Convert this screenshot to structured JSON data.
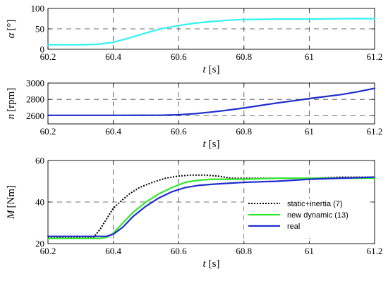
{
  "chart_data": [
    {
      "type": "line",
      "ylabel_sym": "α",
      "ylabel_unit": "[°]",
      "xlabel_sym": "t",
      "xlabel_unit": "[s]",
      "xlim": [
        60.2,
        61.2
      ],
      "ylim": [
        0,
        100
      ],
      "xticks": [
        "60.2",
        "60.4",
        "60.6",
        "60.8",
        "61",
        "61.2"
      ],
      "yticks": [
        "0",
        "50",
        "100"
      ],
      "grid": true,
      "series": [
        {
          "color": "#33f2f2",
          "x": [
            60.2,
            60.3,
            60.35,
            60.4,
            60.45,
            60.5,
            60.55,
            60.6,
            60.65,
            60.7,
            60.75,
            60.8,
            60.9,
            61.0,
            61.1,
            61.2
          ],
          "y": [
            11,
            11,
            12,
            17,
            28,
            40,
            51,
            58,
            64,
            68,
            71,
            73,
            74,
            74,
            75,
            75
          ]
        }
      ]
    },
    {
      "type": "line",
      "ylabel_sym": "n",
      "ylabel_unit": "[rpm]",
      "xlabel_sym": "t",
      "xlabel_unit": "[s]",
      "xlim": [
        60.2,
        61.2
      ],
      "ylim": [
        2500,
        3000
      ],
      "xticks": [
        "60.2",
        "60.4",
        "60.6",
        "60.8",
        "61",
        "61.2"
      ],
      "yticks": [
        "2600",
        "2800",
        "3000"
      ],
      "grid": true,
      "series": [
        {
          "color": "#1f2ecc",
          "x": [
            60.2,
            60.4,
            60.55,
            60.6,
            60.65,
            60.7,
            60.75,
            60.8,
            60.85,
            60.9,
            60.95,
            61.0,
            61.05,
            61.1,
            61.15,
            61.2
          ],
          "y": [
            2605,
            2605,
            2607,
            2612,
            2625,
            2645,
            2668,
            2695,
            2725,
            2755,
            2782,
            2810,
            2835,
            2860,
            2895,
            2935
          ]
        }
      ]
    },
    {
      "type": "line",
      "ylabel_sym": "M",
      "ylabel_unit": "[Nm]",
      "xlabel_sym": "t",
      "xlabel_unit": "[s]",
      "xlim": [
        60.2,
        61.2
      ],
      "ylim": [
        20,
        60
      ],
      "xticks": [
        "60.2",
        "60.4",
        "60.6",
        "60.8",
        "61",
        "61.2"
      ],
      "yticks": [
        "20",
        "40",
        "60"
      ],
      "grid": true,
      "legend_position": "bottom-right",
      "series": [
        {
          "name": "static+inertia (7)",
          "color": "#000000",
          "dash": "2 2",
          "x": [
            60.2,
            60.3,
            60.34,
            60.36,
            60.38,
            60.4,
            60.42,
            60.45,
            60.48,
            60.52,
            60.56,
            60.6,
            60.64,
            60.68,
            60.72,
            60.76,
            60.8,
            60.9,
            61.0,
            61.1,
            61.2
          ],
          "y": [
            23,
            23,
            23,
            27,
            32,
            37,
            40,
            44,
            47,
            49.5,
            51.5,
            52.5,
            53,
            53,
            52.5,
            51.5,
            51.5,
            51.5,
            51.5,
            52,
            52
          ]
        },
        {
          "name": "new dynamic (13)",
          "color": "#33e62e",
          "dash": "",
          "x": [
            60.2,
            60.36,
            60.38,
            60.4,
            60.43,
            60.46,
            60.5,
            60.54,
            60.58,
            60.62,
            60.66,
            60.7,
            60.75,
            60.8,
            60.9,
            61.0,
            61.1,
            61.2
          ],
          "y": [
            22.5,
            22.5,
            23,
            25,
            30,
            35,
            40,
            44,
            47,
            49.5,
            50.5,
            51,
            51,
            51,
            51.5,
            51.5,
            51.5,
            51.5
          ]
        },
        {
          "name": "real",
          "color": "#1f2ecc",
          "dash": "",
          "x": [
            60.2,
            60.36,
            60.38,
            60.4,
            60.43,
            60.46,
            60.5,
            60.54,
            60.58,
            60.62,
            60.66,
            60.7,
            60.75,
            60.8,
            60.9,
            61.0,
            61.1,
            61.2
          ],
          "y": [
            23.5,
            23.5,
            23.5,
            24.5,
            28,
            33,
            38,
            42,
            45,
            47,
            48,
            48.5,
            49,
            49.5,
            50,
            51,
            51.5,
            52
          ]
        }
      ]
    }
  ]
}
